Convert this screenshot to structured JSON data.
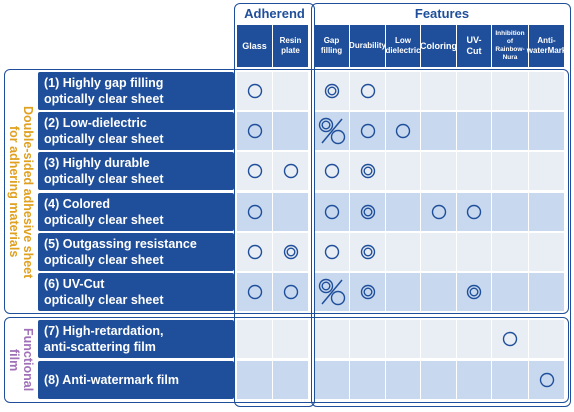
{
  "header": {
    "adherend_title": "Adherend",
    "features_title": "Features"
  },
  "columns": [
    {
      "key": "glass",
      "label": "Glass"
    },
    {
      "key": "resin",
      "label": "Resin\nplate"
    },
    {
      "key": "gap",
      "label": "Gap\nfilling"
    },
    {
      "key": "durability",
      "label": "Durability"
    },
    {
      "key": "lowdiel",
      "label": "Low\ndielectric"
    },
    {
      "key": "coloring",
      "label": "Coloring"
    },
    {
      "key": "uvcut",
      "label": "UV-\nCut"
    },
    {
      "key": "rainbow",
      "label": "Inhibition\nof\nRainbow-\nNura"
    },
    {
      "key": "antiwater",
      "label": "Anti-\nwaterMark"
    }
  ],
  "groups": [
    {
      "label": "Double-sided adhesive sheet\nfor adhering materials",
      "color": "#e0a020"
    },
    {
      "label": "Functional\nfilm",
      "color": "#a070b8"
    }
  ],
  "rows": [
    {
      "label": "(1) Highly gap filling\n      optically clear sheet",
      "marks": [
        "single",
        "",
        "double",
        "single",
        "",
        "",
        "",
        "",
        ""
      ]
    },
    {
      "label": "(2) Low-dielectric\n      optically clear sheet",
      "marks": [
        "single",
        "",
        "percent",
        "single",
        "single",
        "",
        "",
        "",
        ""
      ]
    },
    {
      "label": "(3) Highly durable\n      optically clear sheet",
      "marks": [
        "single",
        "single",
        "single",
        "double",
        "",
        "",
        "",
        "",
        ""
      ]
    },
    {
      "label": "(4) Colored\n      optically clear sheet",
      "marks": [
        "single",
        "",
        "single",
        "double",
        "",
        "single",
        "single",
        "",
        ""
      ]
    },
    {
      "label": "(5) Outgassing resistance\n      optically clear sheet",
      "marks": [
        "single",
        "double",
        "single",
        "double",
        "",
        "",
        "",
        "",
        ""
      ]
    },
    {
      "label": "(6) UV-Cut\n      optically clear sheet",
      "marks": [
        "single",
        "single",
        "percent",
        "double",
        "",
        "",
        "double",
        "",
        ""
      ]
    },
    {
      "label": "(7) High-retardation,\n      anti-scattering film",
      "marks": [
        "",
        "",
        "",
        "",
        "",
        "",
        "",
        "single",
        ""
      ]
    },
    {
      "label": "(8) Anti-watermark film",
      "marks": [
        "",
        "",
        "",
        "",
        "",
        "",
        "",
        "",
        "single"
      ]
    }
  ],
  "colors": {
    "navy": "#1f4e9a",
    "light": "#e9eef5",
    "blue": "#c8d9ef",
    "orange": "#e0a020",
    "purple": "#a070b8"
  }
}
